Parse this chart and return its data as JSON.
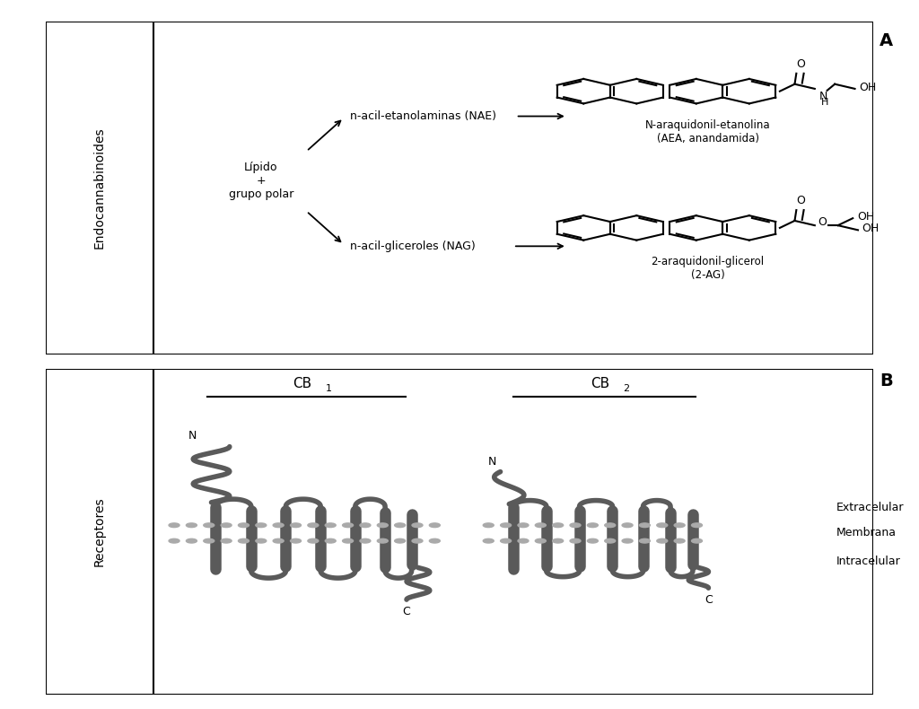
{
  "bg_color": "#ffffff",
  "border_color": "#000000",
  "text_color": "#000000",
  "receptor_color": "#5a5a5a",
  "dot_color": "#aaaaaa",
  "panel_A_label": "A",
  "panel_B_label": "B",
  "side_label_A": "Endocannabinoides",
  "side_label_B": "Receptores",
  "lipido_text": "Lípido\n+\ngrupo polar",
  "nae_text": "n-acil-etanolaminas (NAE)",
  "nag_text": "n-acil-gliceroles (NAG)",
  "aea_name": "N-araquidonil-etanolina\n(AEA, anandamida)",
  "ag2_name": "2-araquidonil-glicerol\n(2-AG)",
  "extracelular": "Extracelular",
  "membrana": "Membrana",
  "intracelular": "Intracelular"
}
